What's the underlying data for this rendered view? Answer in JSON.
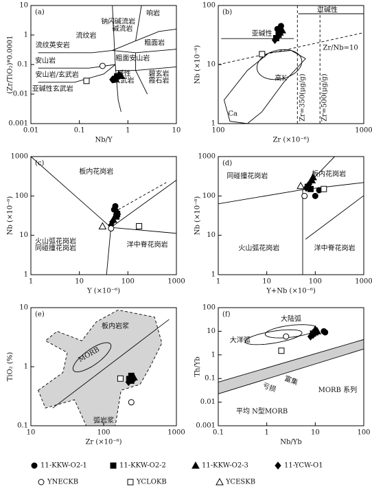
{
  "chart_data": [
    {
      "type": "scatter",
      "title": "(a)",
      "x_label": "Nb/Y",
      "y_label": "(Zr/TiO₂)*0.0001",
      "log_x": true,
      "log_y": true,
      "xlim": [
        0.01,
        10
      ],
      "ylim": [
        0.001,
        10
      ],
      "xticks": [
        0.01,
        0.1,
        1,
        10
      ],
      "yticks": [
        0.001,
        0.01,
        0.1,
        1,
        10
      ],
      "annotations": [
        "响岩",
        "钠闪碱流岩",
        "碱流岩",
        "流纹岩",
        "粗面岩",
        "流纹英安岩",
        "安山岩",
        "粗面安山岩",
        "安山岩/玄武岩",
        "碱性",
        "玄武岩",
        "碧玄岩",
        "霞石岩",
        "亚碱性玄武岩"
      ],
      "series": [
        {
          "x": [
            0.5,
            0.55
          ],
          "y": [
            0.03,
            0.034
          ]
        },
        {
          "x": [
            0.6,
            0.56
          ],
          "y": [
            0.04,
            0.033
          ]
        },
        {
          "x": [
            0.65,
            0.72
          ],
          "y": [
            0.046,
            0.042
          ]
        },
        {
          "x": [
            0.48,
            0.6
          ],
          "y": [
            0.031,
            0.037
          ]
        },
        {
          "x": [
            0.3
          ],
          "y": [
            0.09
          ]
        },
        {
          "x": [
            0.14
          ],
          "y": [
            0.028
          ]
        },
        {
          "x": [],
          "y": []
        }
      ]
    },
    {
      "type": "scatter",
      "title": "(b)",
      "x_label": "Zr (×10⁻⁶)",
      "y_label": "Nb (×10⁻⁶)",
      "log_x": true,
      "log_y": true,
      "xlim": [
        100,
        1000
      ],
      "ylim": [
        1,
        100
      ],
      "xticks": [
        100,
        1000
      ],
      "yticks": [
        1,
        10,
        100
      ],
      "annotations": [
        "过碱性",
        "亚碱性",
        "Zr/Nb=10",
        "高K",
        "Ca",
        "Zr=350(μg/g)",
        "Zr=500(μg/g)"
      ],
      "series": [
        {
          "x": [
            255,
            270
          ],
          "y": [
            40,
            45
          ]
        },
        {
          "x": [
            260,
            250
          ],
          "y": [
            32,
            28
          ]
        },
        {
          "x": [
            275,
            265
          ],
          "y": [
            38,
            35
          ]
        },
        {
          "x": [
            245,
            258
          ],
          "y": [
            26,
            30
          ]
        },
        {
          "x": [],
          "y": []
        },
        {
          "x": [
            200
          ],
          "y": [
            15
          ]
        },
        {
          "x": [],
          "y": []
        }
      ]
    },
    {
      "type": "scatter",
      "title": "(c)",
      "x_label": "Y (×10⁻⁶)",
      "y_label": "Nb (×10⁻⁶)",
      "log_x": true,
      "log_y": true,
      "xlim": [
        1,
        1000
      ],
      "ylim": [
        1,
        1000
      ],
      "xticks": [
        1,
        10,
        100,
        1000
      ],
      "yticks": [
        1,
        10,
        100,
        1000
      ],
      "annotations": [
        "板内花岗岩",
        "火山弧花岗岩",
        "同碰撞花岗岩",
        "洋中脊花岗岩"
      ],
      "series": [
        {
          "x": [
            55,
            52
          ],
          "y": [
            55,
            45
          ]
        },
        {
          "x": [
            58,
            60
          ],
          "y": [
            30,
            35
          ]
        },
        {
          "x": [
            60,
            50
          ],
          "y": [
            40,
            25
          ]
        },
        {
          "x": [
            45,
            48
          ],
          "y": [
            18,
            22
          ]
        },
        {
          "x": [
            45
          ],
          "y": [
            15
          ]
        },
        {
          "x": [
            170
          ],
          "y": [
            17
          ]
        },
        {
          "x": [
            30
          ],
          "y": [
            17
          ]
        }
      ]
    },
    {
      "type": "scatter",
      "title": "(d)",
      "x_label": "Y+Nb (×10⁻⁶)",
      "y_label": "Nb (×10⁻⁶)",
      "log_x": true,
      "log_y": true,
      "xlim": [
        1,
        1000
      ],
      "ylim": [
        1,
        1000
      ],
      "xticks": [
        1,
        10,
        100,
        1000
      ],
      "yticks": [
        1,
        10,
        100,
        1000
      ],
      "annotations": [
        "同碰撞花岗岩",
        "板内花岗岩",
        "火山弧花岗岩",
        "洋中脊花岗岩"
      ],
      "series": [
        {
          "x": [
            100,
            120
          ],
          "y": [
            100,
            140
          ]
        },
        {
          "x": [
            70,
            80
          ],
          "y": [
            170,
            150
          ]
        },
        {
          "x": [
            90,
            85
          ],
          "y": [
            300,
            250
          ]
        },
        {
          "x": [
            75,
            65
          ],
          "y": [
            200,
            160
          ]
        },
        {
          "x": [
            60
          ],
          "y": [
            100
          ]
        },
        {
          "x": [
            150
          ],
          "y": [
            150
          ]
        },
        {
          "x": [
            50
          ],
          "y": [
            180
          ]
        }
      ]
    },
    {
      "type": "scatter",
      "title": "(e)",
      "x_label": "Zr (×10⁻⁶)",
      "y_label": "TiO₂ (%)",
      "log_x": true,
      "log_y": true,
      "xlim": [
        10,
        1000
      ],
      "ylim": [
        0.1,
        10
      ],
      "xticks": [
        10,
        100,
        1000
      ],
      "yticks": [
        0.1,
        1,
        10
      ],
      "annotations": [
        "板内岩浆",
        "MORB",
        "弧岩浆"
      ],
      "series": [
        {
          "x": [
            230,
            250
          ],
          "y": [
            0.6,
            0.65
          ]
        },
        {
          "x": [
            240,
            225
          ],
          "y": [
            0.7,
            0.62
          ]
        },
        {
          "x": [
            260,
            235
          ],
          "y": [
            0.66,
            0.58
          ]
        },
        {
          "x": [
            220,
            255
          ],
          "y": [
            0.55,
            0.6
          ]
        },
        {
          "x": [
            240
          ],
          "y": [
            0.25
          ]
        },
        {
          "x": [
            170
          ],
          "y": [
            0.63
          ]
        },
        {
          "x": [],
          "y": []
        }
      ]
    },
    {
      "type": "scatter",
      "title": "(f)",
      "x_label": "Nb/Yb",
      "y_label": "Th/Yb",
      "log_x": true,
      "log_y": true,
      "xlim": [
        0.1,
        100
      ],
      "ylim": [
        0.001,
        100
      ],
      "xticks": [
        0.1,
        1,
        10,
        100
      ],
      "yticks": [
        0.001,
        0.01,
        0.1,
        1,
        10,
        100
      ],
      "annotations": [
        "大陆弧",
        "大洋弧",
        "亏损",
        "富集",
        "MORB 系列",
        "平均 N型MORB"
      ],
      "series": [
        {
          "x": [
            15,
            16
          ],
          "y": [
            10,
            9
          ]
        },
        {
          "x": [
            9,
            10
          ],
          "y": [
            8,
            9
          ]
        },
        {
          "x": [
            10,
            11
          ],
          "y": [
            12,
            10
          ]
        },
        {
          "x": [
            8,
            9
          ],
          "y": [
            6,
            7
          ]
        },
        {
          "x": [
            2.5
          ],
          "y": [
            6
          ]
        },
        {
          "x": [
            2
          ],
          "y": [
            1.5
          ]
        },
        {
          "x": [],
          "y": []
        }
      ]
    }
  ],
  "legend": [
    {
      "name": "11-KKW-O2-1",
      "marker": "circle",
      "filled": true
    },
    {
      "name": "11-KKW-O2-2",
      "marker": "square",
      "filled": true
    },
    {
      "name": "11-KKW-O2-3",
      "marker": "triangle",
      "filled": true
    },
    {
      "name": "11-YCW-O1",
      "marker": "diamond",
      "filled": true
    },
    {
      "name": "YNECKB",
      "marker": "circle",
      "filled": false
    },
    {
      "name": "YCLOKB",
      "marker": "square",
      "filled": false
    },
    {
      "name": "YCESKB",
      "marker": "triangle",
      "filled": false
    }
  ]
}
